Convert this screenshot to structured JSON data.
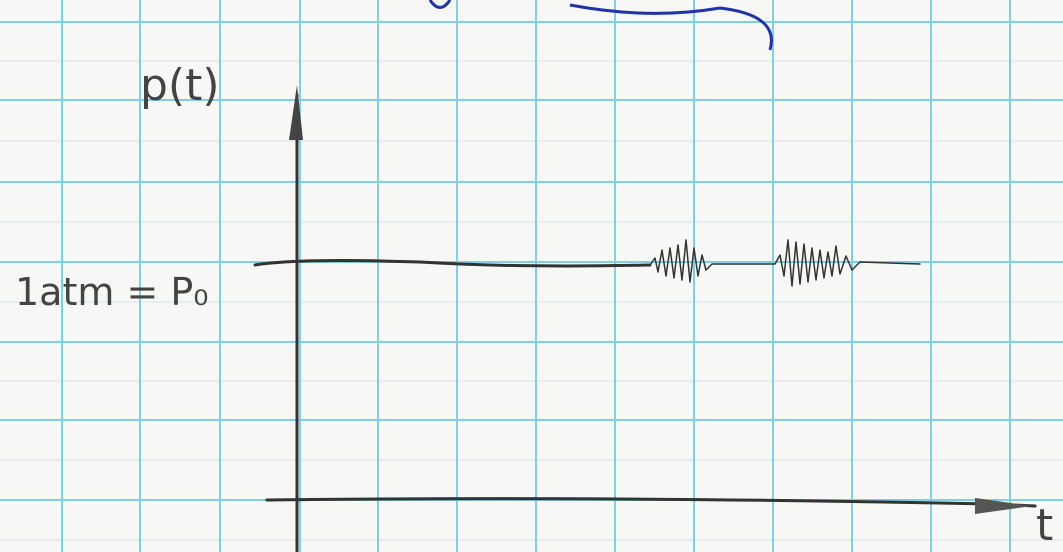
{
  "diagram": {
    "y_label": "p(t)",
    "level_label": "1atm = P₀",
    "x_label": "t"
  }
}
